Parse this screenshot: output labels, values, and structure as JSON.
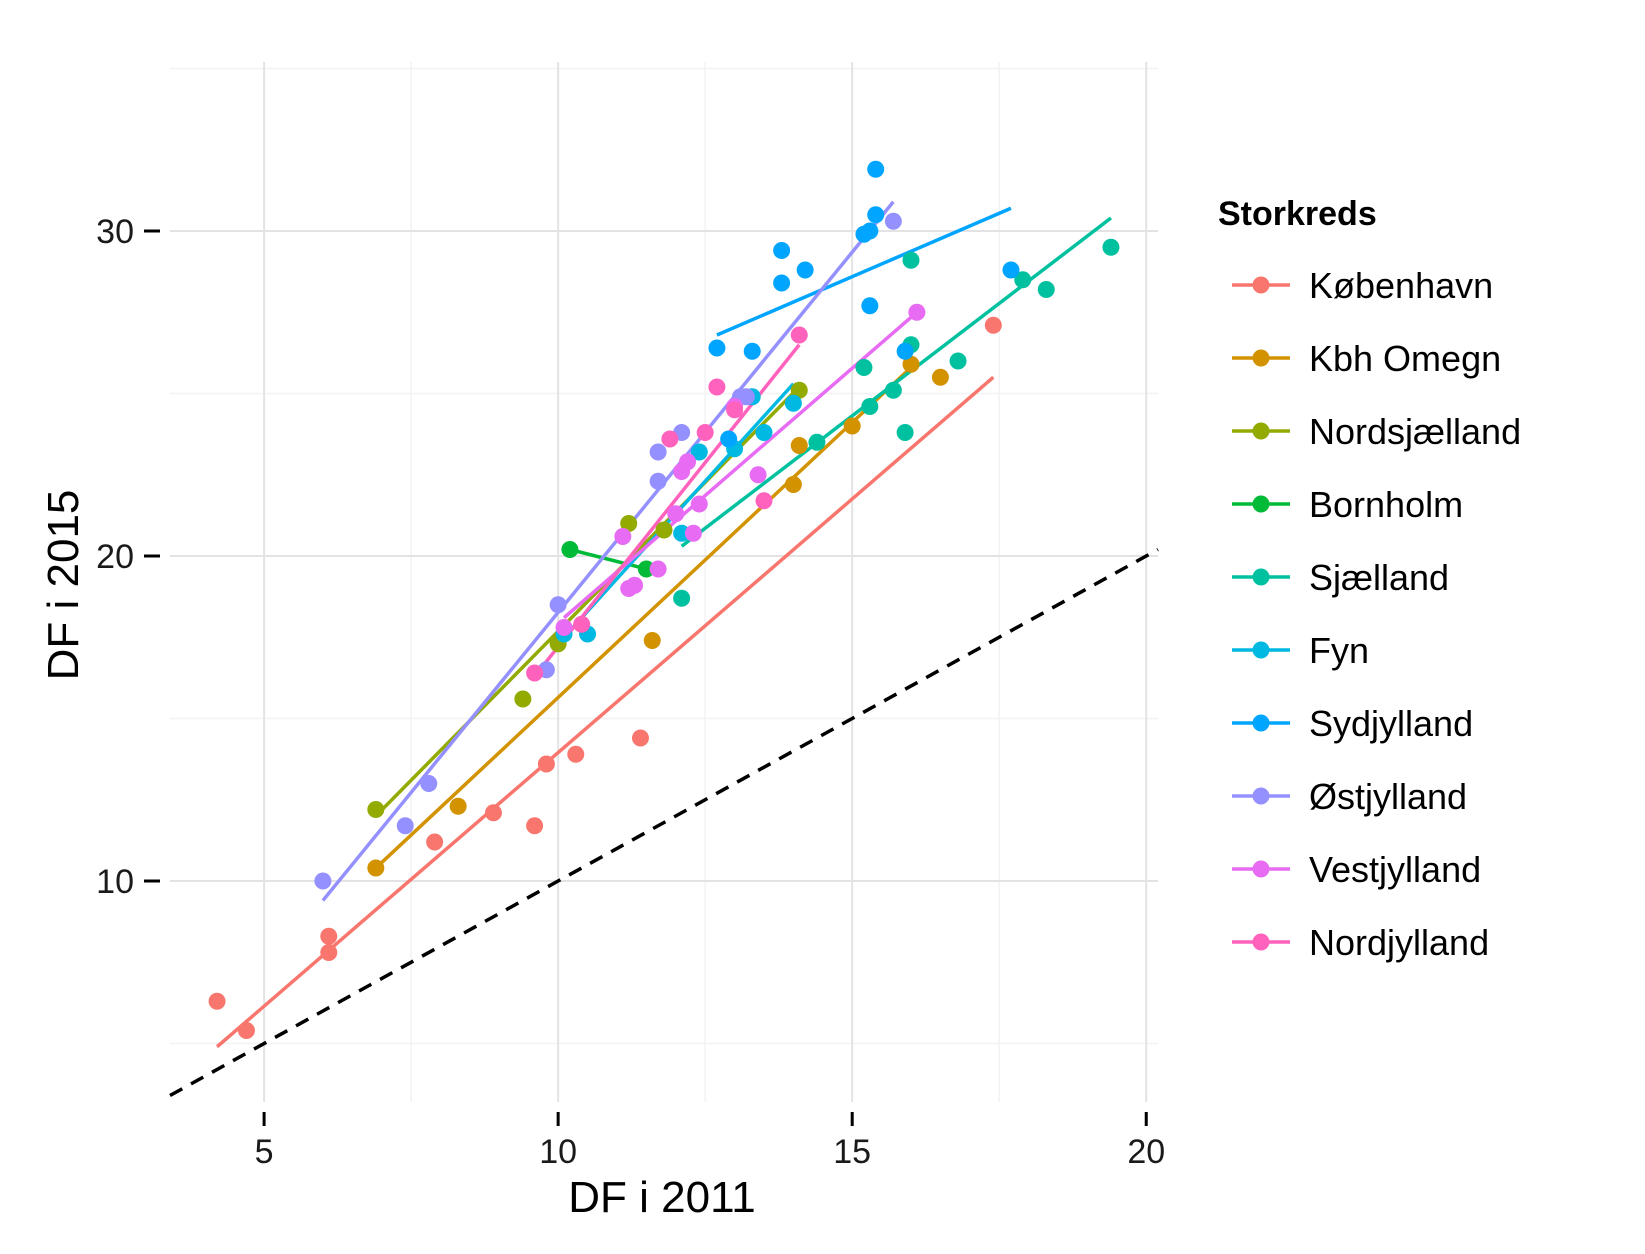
{
  "chart_data": {
    "type": "scatter",
    "xlabel": "DF i 2011",
    "ylabel": "DF i 2015",
    "xlim": [
      3.4,
      20.2
    ],
    "ylim": [
      3.2,
      35.2
    ],
    "x_ticks": [
      5,
      10,
      15,
      20
    ],
    "y_ticks": [
      10,
      20,
      30
    ],
    "grid": true,
    "legend_title": "Storkreds",
    "legend_position": "right",
    "reference_line": {
      "type": "identity",
      "style": "dashed",
      "color": "#000000"
    },
    "series": [
      {
        "name": "København",
        "color": "#F8766D",
        "points": [
          [
            4.2,
            6.3
          ],
          [
            4.7,
            5.4
          ],
          [
            6.1,
            8.3
          ],
          [
            6.1,
            7.8
          ],
          [
            7.9,
            11.2
          ],
          [
            8.9,
            12.1
          ],
          [
            9.6,
            11.7
          ],
          [
            9.8,
            13.6
          ],
          [
            10.3,
            13.9
          ],
          [
            11.4,
            14.4
          ],
          [
            17.4,
            27.1
          ]
        ],
        "fit": [
          [
            4.2,
            4.9
          ],
          [
            17.4,
            25.5
          ]
        ]
      },
      {
        "name": "Kbh Omegn",
        "color": "#D39200",
        "points": [
          [
            6.9,
            10.4
          ],
          [
            8.3,
            12.3
          ],
          [
            11.6,
            17.4
          ],
          [
            14.0,
            22.2
          ],
          [
            14.1,
            23.4
          ],
          [
            15.0,
            24.0
          ],
          [
            16.0,
            25.9
          ],
          [
            16.5,
            25.5
          ]
        ],
        "fit": [
          [
            6.9,
            10.4
          ],
          [
            16.0,
            25.8
          ]
        ]
      },
      {
        "name": "Nordsjælland",
        "color": "#93AA00",
        "points": [
          [
            6.9,
            12.2
          ],
          [
            9.4,
            15.6
          ],
          [
            10.0,
            17.3
          ],
          [
            11.2,
            21.0
          ],
          [
            11.8,
            20.8
          ],
          [
            14.1,
            25.1
          ]
        ],
        "fit": [
          [
            6.9,
            12.0
          ],
          [
            14.1,
            25.2
          ]
        ]
      },
      {
        "name": "Bornholm",
        "color": "#00BA38",
        "points": [
          [
            10.2,
            20.2
          ],
          [
            11.5,
            19.6
          ]
        ],
        "fit": [
          [
            10.2,
            20.2
          ],
          [
            11.5,
            19.6
          ]
        ]
      },
      {
        "name": "Sjælland",
        "color": "#00C19F",
        "points": [
          [
            12.1,
            18.7
          ],
          [
            14.4,
            23.5
          ],
          [
            15.2,
            25.8
          ],
          [
            15.3,
            24.6
          ],
          [
            15.7,
            25.1
          ],
          [
            15.9,
            23.8
          ],
          [
            16.0,
            29.1
          ],
          [
            16.0,
            26.5
          ],
          [
            16.8,
            26.0
          ],
          [
            17.9,
            28.5
          ],
          [
            18.3,
            28.2
          ],
          [
            19.4,
            29.5
          ]
        ],
        "fit": [
          [
            12.1,
            20.3
          ],
          [
            19.4,
            30.4
          ]
        ]
      },
      {
        "name": "Fyn",
        "color": "#00B9E3",
        "points": [
          [
            10.1,
            17.6
          ],
          [
            10.5,
            17.6
          ],
          [
            12.1,
            20.7
          ],
          [
            12.4,
            23.2
          ],
          [
            13.0,
            23.3
          ],
          [
            13.3,
            24.9
          ],
          [
            13.5,
            23.8
          ],
          [
            14.0,
            24.7
          ]
        ],
        "fit": [
          [
            10.1,
            17.5
          ],
          [
            14.0,
            25.3
          ]
        ]
      },
      {
        "name": "Sydjylland",
        "color": "#00A5FF",
        "points": [
          [
            12.7,
            26.4
          ],
          [
            12.9,
            23.6
          ],
          [
            13.3,
            26.3
          ],
          [
            13.8,
            29.4
          ],
          [
            13.8,
            28.4
          ],
          [
            14.2,
            28.8
          ],
          [
            15.2,
            29.9
          ],
          [
            15.3,
            30.0
          ],
          [
            15.3,
            27.7
          ],
          [
            15.4,
            30.5
          ],
          [
            15.4,
            31.9
          ],
          [
            15.9,
            26.3
          ],
          [
            17.7,
            28.8
          ]
        ],
        "fit": [
          [
            12.7,
            26.8
          ],
          [
            17.7,
            30.7
          ]
        ]
      },
      {
        "name": "Østjylland",
        "color": "#9590FF",
        "points": [
          [
            6.0,
            10.0
          ],
          [
            7.4,
            11.7
          ],
          [
            7.8,
            13.0
          ],
          [
            9.8,
            16.5
          ],
          [
            10.0,
            18.5
          ],
          [
            11.7,
            23.2
          ],
          [
            11.7,
            22.3
          ],
          [
            12.1,
            23.8
          ],
          [
            13.1,
            24.9
          ],
          [
            13.2,
            24.9
          ],
          [
            15.7,
            30.3
          ]
        ],
        "fit": [
          [
            6.0,
            9.4
          ],
          [
            15.7,
            30.9
          ]
        ]
      },
      {
        "name": "Vestjylland",
        "color": "#E76BF3",
        "points": [
          [
            10.1,
            17.8
          ],
          [
            11.1,
            20.6
          ],
          [
            11.2,
            19.0
          ],
          [
            11.3,
            19.1
          ],
          [
            11.7,
            19.6
          ],
          [
            12.0,
            21.3
          ],
          [
            12.1,
            22.6
          ],
          [
            12.2,
            22.9
          ],
          [
            12.3,
            20.7
          ],
          [
            12.4,
            21.6
          ],
          [
            13.0,
            24.6
          ],
          [
            13.4,
            22.5
          ],
          [
            16.1,
            27.5
          ]
        ],
        "fit": [
          [
            10.1,
            18.1
          ],
          [
            16.1,
            27.5
          ]
        ]
      },
      {
        "name": "Nordjylland",
        "color": "#FF62BC",
        "points": [
          [
            9.6,
            16.4
          ],
          [
            10.4,
            17.9
          ],
          [
            11.9,
            23.6
          ],
          [
            12.5,
            23.8
          ],
          [
            12.7,
            25.2
          ],
          [
            13.0,
            24.5
          ],
          [
            13.5,
            21.7
          ],
          [
            14.1,
            26.8
          ]
        ],
        "fit": [
          [
            9.6,
            16.3
          ],
          [
            14.1,
            26.5
          ]
        ]
      }
    ]
  }
}
